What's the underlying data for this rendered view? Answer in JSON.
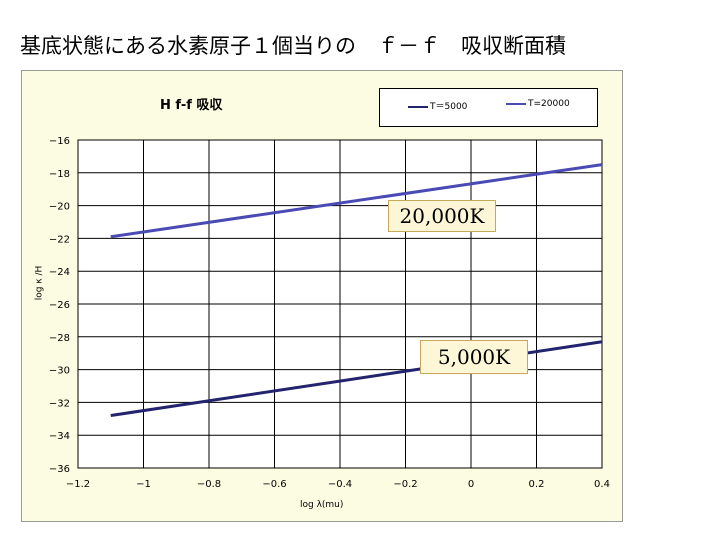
{
  "slide_title": "基底状態にある水素原子１個当りの　ｆ－ｆ　吸収断面積",
  "colors": {
    "plot_bg": "#ffffff",
    "chart_bg": "#fcfce2",
    "grid": "#000000",
    "line_5000": "#23236e",
    "line_20000": "#4a4ab5"
  },
  "chart_data": {
    "type": "line",
    "title": "H f-f 吸収",
    "xlabel": "log λ(mu)",
    "ylabel": "log κ /H",
    "xlim": [
      -1.2,
      0.4
    ],
    "ylim": [
      -36,
      -16
    ],
    "x_ticks": [
      "−1.2",
      "−1",
      "−0.8",
      "−0.6",
      "−0.4",
      "−0.2",
      "0",
      "0.2",
      "0.4"
    ],
    "y_ticks": [
      "−16",
      "−18",
      "−20",
      "−22",
      "−24",
      "−26",
      "−28",
      "−30",
      "−32",
      "−34",
      "−36"
    ],
    "grid": true,
    "legend_position": "top-right",
    "series": [
      {
        "name": "T＝5000",
        "color": "#23236e",
        "x": [
          -1.1,
          0.4
        ],
        "y": [
          -32.8,
          -28.3
        ]
      },
      {
        "name": "T=20000",
        "color": "#4a4ab5",
        "x": [
          -1.1,
          0.4
        ],
        "y": [
          -21.9,
          -17.5
        ]
      }
    ],
    "annotations": [
      "20,000K",
      "5,000K"
    ]
  }
}
